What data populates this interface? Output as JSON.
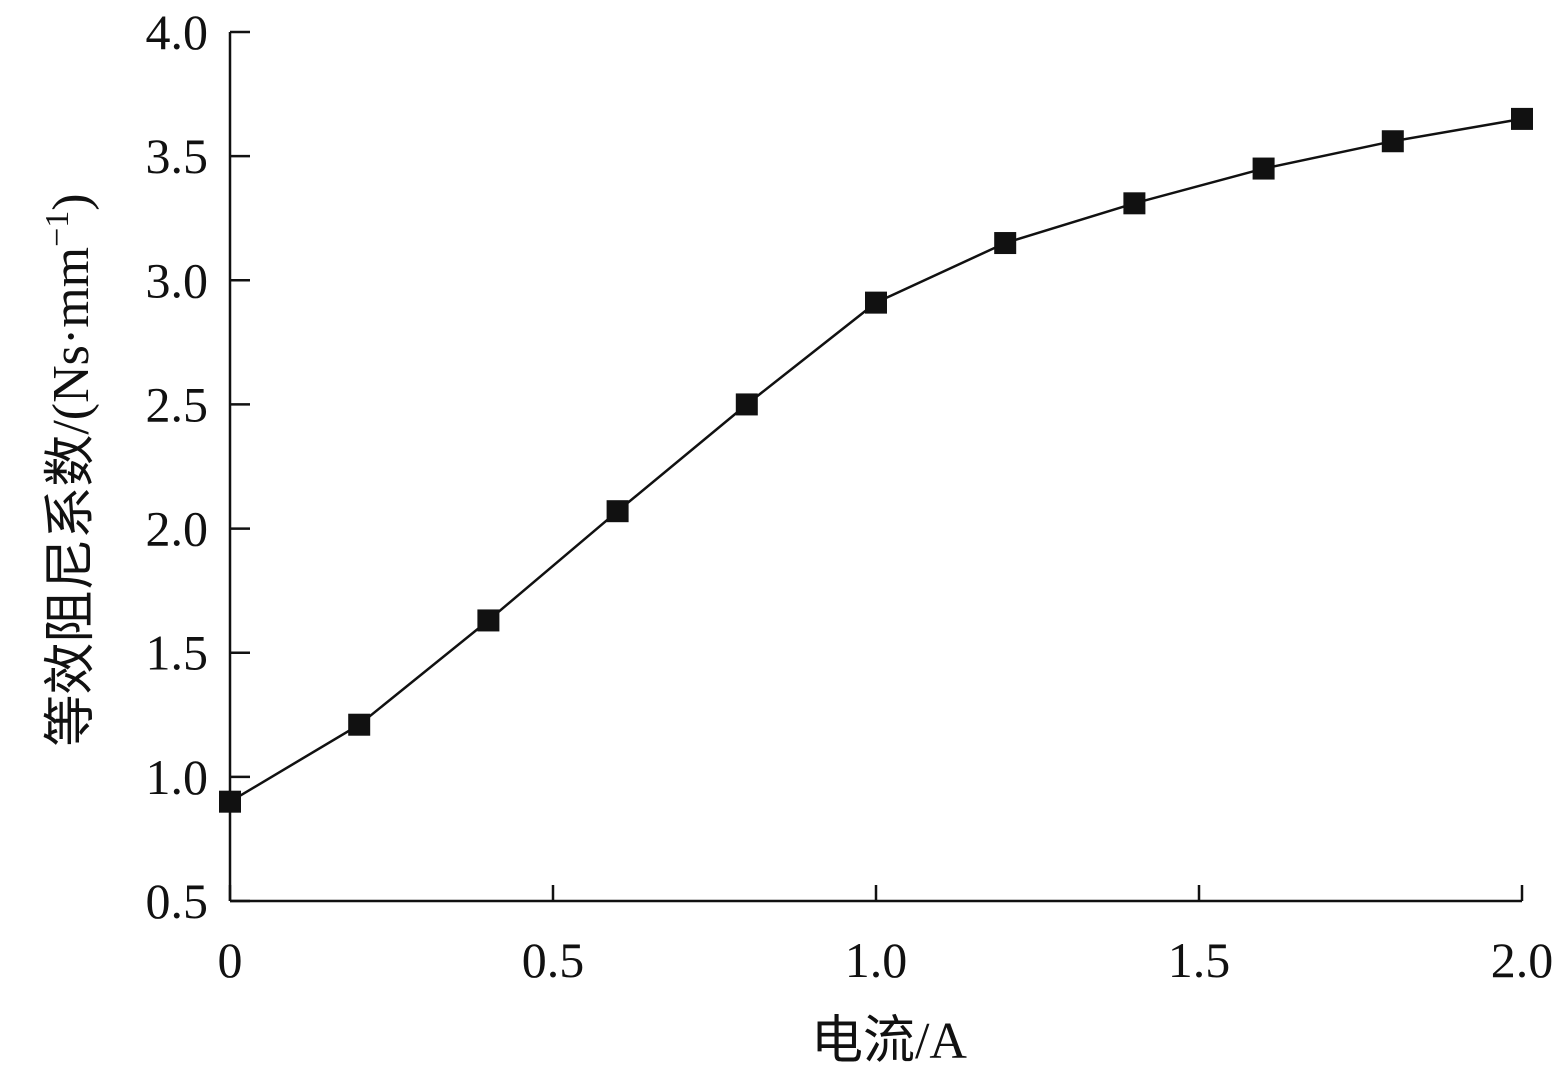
{
  "chart_data": {
    "type": "line",
    "title": "",
    "xlabel": "电流/A",
    "ylabel": "等效阻尼系数/(Ns·mm",
    "ylabel_superscript": "−1",
    "ylabel_close": ")",
    "xlim": [
      0,
      2.0
    ],
    "ylim": [
      0.5,
      4.0
    ],
    "xticks": [
      0,
      0.5,
      1.0,
      1.5,
      2.0
    ],
    "xtick_labels": [
      "0",
      "0.5",
      "1.0",
      "1.5",
      "2.0"
    ],
    "yticks": [
      0.5,
      1.0,
      1.5,
      2.0,
      2.5,
      3.0,
      3.5,
      4.0
    ],
    "ytick_labels": [
      "0.5",
      "1.0",
      "1.5",
      "2.0",
      "2.5",
      "3.0",
      "3.5",
      "4.0"
    ],
    "grid": false,
    "legend": "none",
    "marker": "square",
    "color": "#111111",
    "series": [
      {
        "x": [
          0,
          0.2,
          0.4,
          0.6,
          0.8,
          1.0,
          1.2,
          1.4,
          1.6,
          1.8,
          2.0
        ],
        "y": [
          0.9,
          1.21,
          1.63,
          2.07,
          2.5,
          2.91,
          3.15,
          3.31,
          3.45,
          3.56,
          3.65
        ]
      }
    ]
  }
}
